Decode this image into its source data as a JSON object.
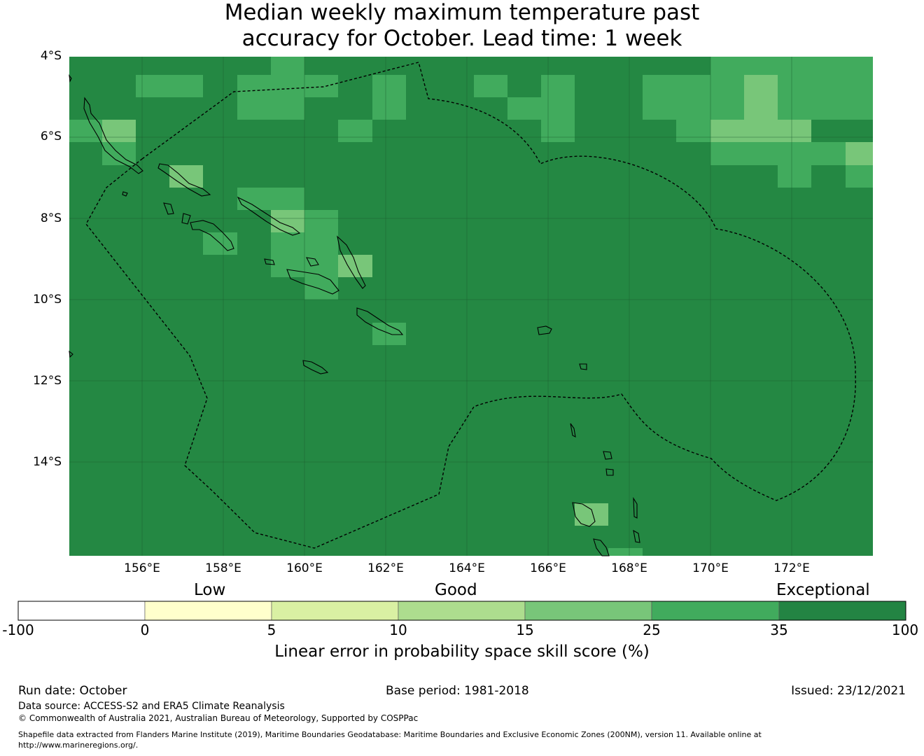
{
  "title": {
    "line1": "Median weekly maximum temperature past",
    "line2": "accuracy for October. Lead time: 1 week"
  },
  "map": {
    "lon_range": [
      154.2,
      174.0
    ],
    "lat_range": [
      -16.3,
      -4.0
    ],
    "background_color": "#248843",
    "lat_ticks": [
      "4°S",
      "6°S",
      "8°S",
      "10°S",
      "12°S",
      "14°S"
    ],
    "lon_ticks": [
      "156°E",
      "158°E",
      "160°E",
      "162°E",
      "164°E",
      "166°E",
      "168°E",
      "170°E",
      "172°E"
    ]
  },
  "colorbar": {
    "categories": [
      "Low",
      "Good",
      "Exceptional"
    ],
    "ticks": [
      "-100",
      "0",
      "5",
      "10",
      "15",
      "25",
      "35",
      "100"
    ],
    "colors": [
      "#ffffff",
      "#ffffcc",
      "#d9f0a3",
      "#addd8e",
      "#78c679",
      "#41ab5d",
      "#238443"
    ],
    "label": "Linear error in probability space skill score (%)"
  },
  "footer": {
    "run_date": "Run date: October",
    "base_period": "Base period: 1981-2018",
    "issued": "Issued: 23/12/2021",
    "data_source": "Data source: ACCESS-S2 and ERA5 Climate Reanalysis",
    "copyright": "© Commonwealth of Australia 2021, Australian Bureau of Meteorology, Supported by COSPPac",
    "shapefile_line1": "Shapefile data extracted from Flanders Marine Institute (2019), Maritime Boundaries Geodatabase: Maritime Boundaries and Exclusive Economic Zones (200NM), version 11. Available online at",
    "shapefile_line2": "http://www.marineregions.org/."
  }
}
